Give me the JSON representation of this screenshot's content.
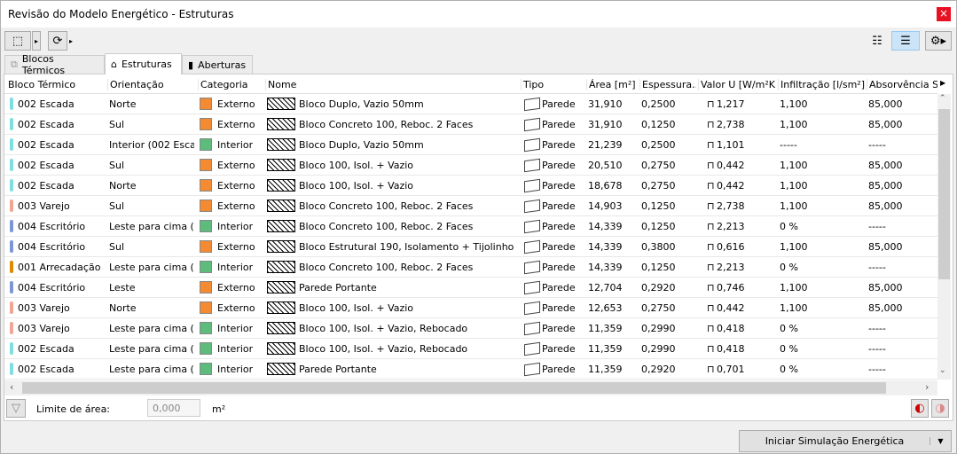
{
  "window": {
    "title": "Revisão do Modelo Energético - Estruturas",
    "close": "×"
  },
  "tabs": [
    {
      "label": "Blocos Térmicos"
    },
    {
      "label": "Estruturas"
    },
    {
      "label": "Aberturas"
    }
  ],
  "columns": [
    "Bloco Térmico",
    "Orientação",
    "Categoria",
    "Nome",
    "Tipo",
    "Área [m²]",
    "Espessura...",
    "Valor U [W/m²K]",
    "Infiltração [l/sm²]",
    "Absorvência Sc"
  ],
  "colors": {
    "002 Escada": "#7fdedf",
    "003 Varejo": "#f2a595",
    "004 Escritório": "#7d97d6",
    "001 Arrecadação": "#dc8a00",
    "Externo": "#f48a32",
    "Interior": "#5dbb7c"
  },
  "rows": [
    {
      "bloco": "002 Escada",
      "orient": "Norte",
      "cat": "Externo",
      "nome": "Bloco Duplo, Vazio 50mm",
      "tipo": "Parede",
      "area": "31,910",
      "esp": "0,2500",
      "u": "1,217",
      "inf": "1,100",
      "abs": "85,000"
    },
    {
      "bloco": "002 Escada",
      "orient": "Sul",
      "cat": "Externo",
      "nome": "Bloco Concreto 100, Reboc. 2 Faces",
      "tipo": "Parede",
      "area": "31,910",
      "esp": "0,1250",
      "u": "2,738",
      "inf": "1,100",
      "abs": "85,000"
    },
    {
      "bloco": "002 Escada",
      "orient": "Interior (002 Esca...",
      "cat": "Interior",
      "nome": "Bloco Duplo, Vazio 50mm",
      "tipo": "Parede",
      "area": "21,239",
      "esp": "0,2500",
      "u": "1,101",
      "inf": "-----",
      "abs": "-----"
    },
    {
      "bloco": "002 Escada",
      "orient": "Sul",
      "cat": "Externo",
      "nome": "Bloco 100, Isol. + Vazio",
      "tipo": "Parede",
      "area": "20,510",
      "esp": "0,2750",
      "u": "0,442",
      "inf": "1,100",
      "abs": "85,000"
    },
    {
      "bloco": "002 Escada",
      "orient": "Norte",
      "cat": "Externo",
      "nome": "Bloco 100, Isol. + Vazio",
      "tipo": "Parede",
      "area": "18,678",
      "esp": "0,2750",
      "u": "0,442",
      "inf": "1,100",
      "abs": "85,000"
    },
    {
      "bloco": "003 Varejo",
      "orient": "Sul",
      "cat": "Externo",
      "nome": "Bloco Concreto 100, Reboc. 2 Faces",
      "tipo": "Parede",
      "area": "14,903",
      "esp": "0,1250",
      "u": "2,738",
      "inf": "1,100",
      "abs": "85,000"
    },
    {
      "bloco": "004 Escritório",
      "orient": "Leste para cima (...",
      "cat": "Interior",
      "nome": "Bloco Concreto 100, Reboc. 2 Faces",
      "tipo": "Parede",
      "area": "14,339",
      "esp": "0,1250",
      "u": "2,213",
      "inf": "0 %",
      "abs": "-----"
    },
    {
      "bloco": "004 Escritório",
      "orient": "Sul",
      "cat": "Externo",
      "nome": "Bloco Estrutural 190, Isolamento + Tijolinho",
      "tipo": "Parede",
      "area": "14,339",
      "esp": "0,3800",
      "u": "0,616",
      "inf": "1,100",
      "abs": "85,000"
    },
    {
      "bloco": "001 Arrecadação",
      "orient": "Leste para cima (...",
      "cat": "Interior",
      "nome": "Bloco Concreto 100, Reboc. 2 Faces",
      "tipo": "Parede",
      "area": "14,339",
      "esp": "0,1250",
      "u": "2,213",
      "inf": "0 %",
      "abs": "-----"
    },
    {
      "bloco": "004 Escritório",
      "orient": "Leste",
      "cat": "Externo",
      "nome": "Parede Portante",
      "tipo": "Parede",
      "area": "12,704",
      "esp": "0,2920",
      "u": "0,746",
      "inf": "1,100",
      "abs": "85,000"
    },
    {
      "bloco": "003 Varejo",
      "orient": "Norte",
      "cat": "Externo",
      "nome": "Bloco 100, Isol. + Vazio",
      "tipo": "Parede",
      "area": "12,653",
      "esp": "0,2750",
      "u": "0,442",
      "inf": "1,100",
      "abs": "85,000"
    },
    {
      "bloco": "003 Varejo",
      "orient": "Leste para cima (...",
      "cat": "Interior",
      "nome": "Bloco 100, Isol. + Vazio, Rebocado",
      "tipo": "Parede",
      "area": "11,359",
      "esp": "0,2990",
      "u": "0,418",
      "inf": "0 %",
      "abs": "-----"
    },
    {
      "bloco": "002 Escada",
      "orient": "Leste para cima (...",
      "cat": "Interior",
      "nome": "Bloco 100, Isol. + Vazio, Rebocado",
      "tipo": "Parede",
      "area": "11,359",
      "esp": "0,2990",
      "u": "0,418",
      "inf": "0 %",
      "abs": "-----"
    },
    {
      "bloco": "002 Escada",
      "orient": "Leste para cima (...",
      "cat": "Interior",
      "nome": "Parede Portante",
      "tipo": "Parede",
      "area": "11,359",
      "esp": "0,2920",
      "u": "0,701",
      "inf": "0 %",
      "abs": "-----"
    }
  ],
  "filter": {
    "label": "Limite de área:",
    "value": "0,000",
    "unit": "m²"
  },
  "footer": {
    "button": "Iniciar Simulação Energética"
  }
}
